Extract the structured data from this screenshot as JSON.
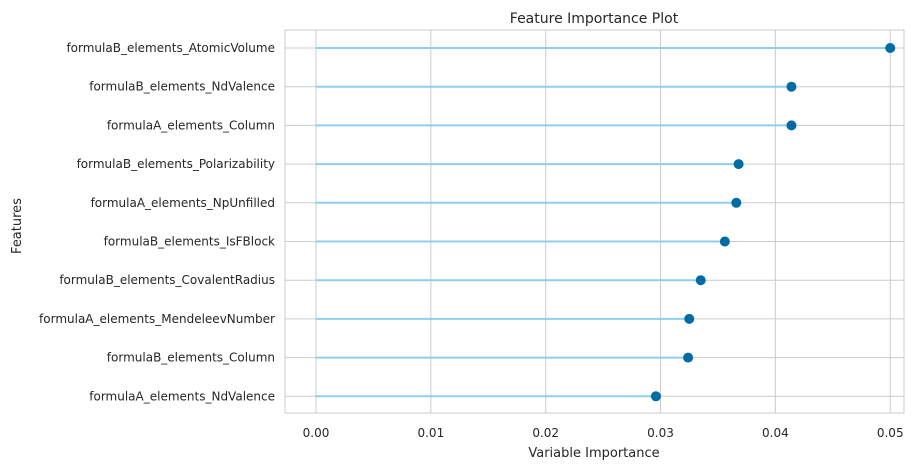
{
  "chart_data": {
    "type": "lollipop",
    "title": "Feature Importance Plot",
    "xlabel": "Variable Importance",
    "ylabel": "Features",
    "xlim": [
      -0.0027,
      0.0512
    ],
    "xticks": [
      "0.00",
      "0.01",
      "0.02",
      "0.03",
      "0.04",
      "0.05"
    ],
    "xtick_values": [
      0.0,
      0.01,
      0.02,
      0.03,
      0.04,
      0.05
    ],
    "grid": true,
    "categories": [
      "formulaB_elements_AtomicVolume",
      "formulaB_elements_NdValence",
      "formulaA_elements_Column",
      "formulaB_elements_Polarizability",
      "formulaA_elements_NpUnfilled",
      "formulaB_elements_IsFBlock",
      "formulaB_elements_CovalentRadius",
      "formulaA_elements_MendeleevNumber",
      "formulaB_elements_Column",
      "formulaA_elements_NdValence"
    ],
    "values": [
      0.05,
      0.0414,
      0.0414,
      0.0368,
      0.0366,
      0.0356,
      0.0335,
      0.0325,
      0.0324,
      0.0296
    ],
    "colors": {
      "stem": "#8fcfee",
      "marker": "#006ba4",
      "grid": "#cccccc"
    }
  }
}
